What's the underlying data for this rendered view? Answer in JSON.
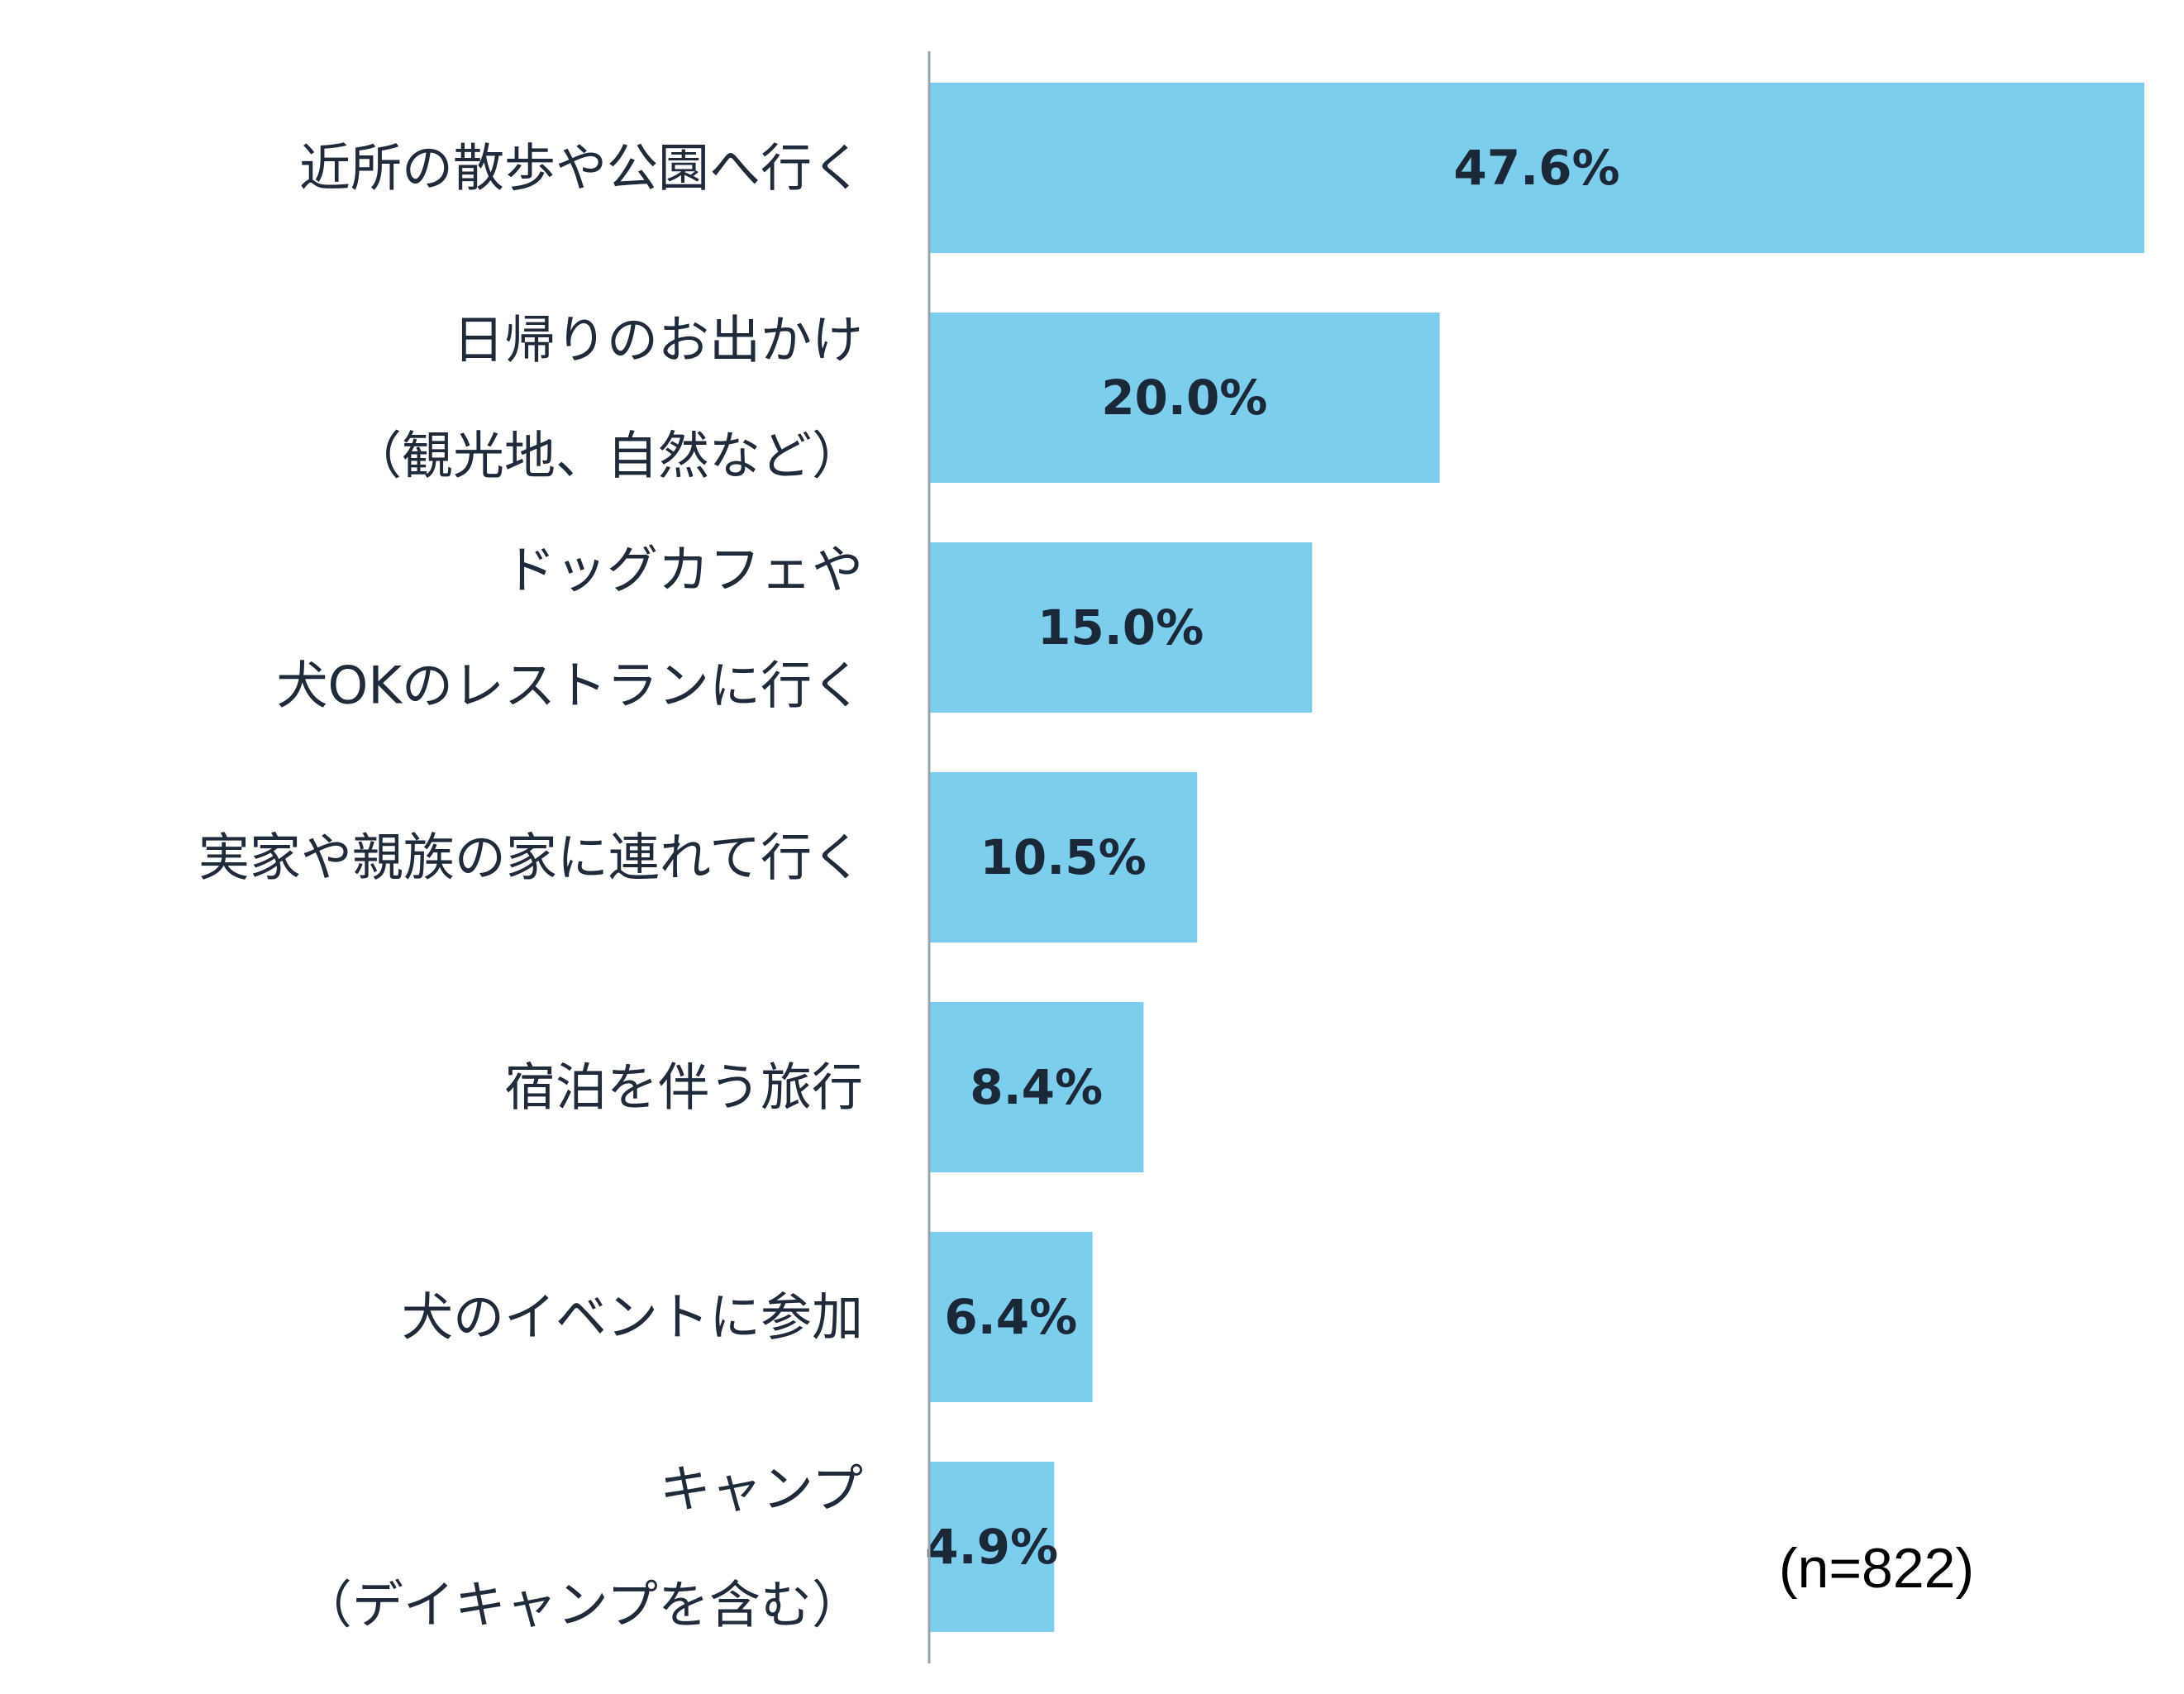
{
  "chart_data": {
    "type": "bar",
    "orientation": "horizontal",
    "categories": [
      [
        "近所の散歩や公園へ行く"
      ],
      [
        "日帰りのお出かけ",
        "（観光地、自然など）"
      ],
      [
        "ドッグカフェや",
        "犬OKのレストランに行く"
      ],
      [
        "実家や親族の家に連れて行く"
      ],
      [
        "宿泊を伴う旅行"
      ],
      [
        "犬のイベントに参加"
      ],
      [
        "キャンプ",
        "（デイキャンプを含む）"
      ]
    ],
    "values": [
      47.6,
      20.0,
      15.0,
      10.5,
      8.4,
      6.4,
      4.9
    ],
    "value_labels": [
      "47.6%",
      "20.0%",
      "15.0%",
      "10.5%",
      "8.4%",
      "6.4%",
      "4.9%"
    ],
    "xlim": [
      0,
      47.6
    ],
    "grid": false,
    "bar_color": "#7dcdee",
    "axis_color": "#9aa3b0",
    "sample_note": "(n=822)"
  }
}
